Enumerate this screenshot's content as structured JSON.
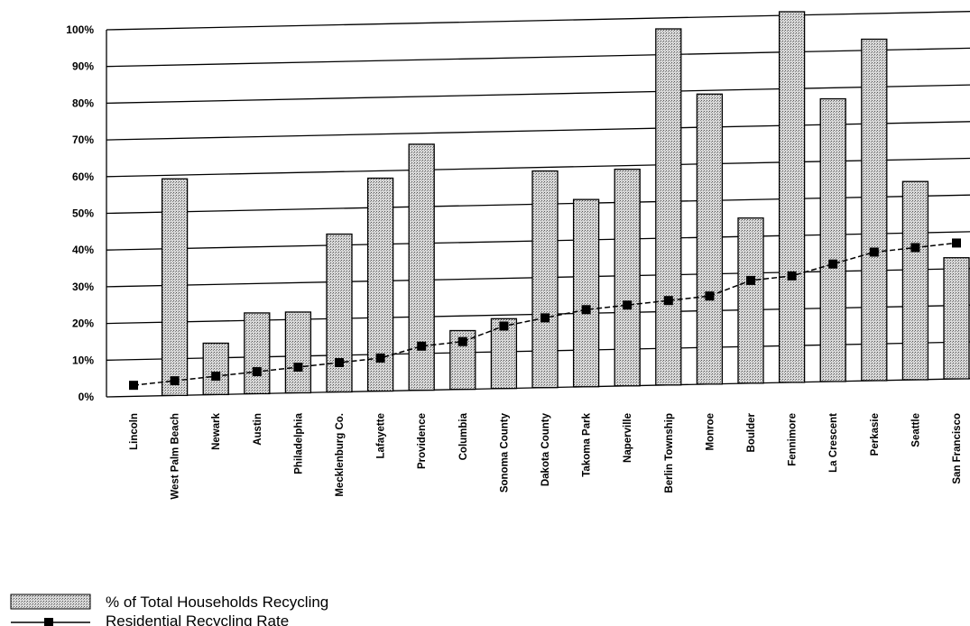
{
  "chart_data": {
    "type": "bar",
    "categories": [
      "Lincoln",
      "West Palm Beach",
      "Newark",
      "Austin",
      "Philadelphia",
      "Mecklenburg Co.",
      "Lafayette",
      "Providence",
      "Columbia",
      "Sonoma County",
      "Dakota County",
      "Takoma Park",
      "Naperville",
      "Berlin Township",
      "Monroe",
      "Boulder",
      "Fennimore",
      "La Crescent",
      "Perkasie",
      "Seattle",
      "San Francisco"
    ],
    "series": [
      {
        "name": "% of Total Households Recycling",
        "kind": "bar",
        "values": [
          0,
          59,
          14,
          22,
          22,
          43,
          58,
          67,
          16,
          19,
          59,
          51,
          59,
          97,
          79,
          45,
          102,
          77,
          93,
          54,
          33
        ]
      },
      {
        "name": "Residential Recycling Rate",
        "kind": "line",
        "values": [
          3,
          4,
          5,
          6,
          7,
          8,
          9,
          12,
          13,
          17,
          19,
          21,
          22,
          23,
          24,
          28,
          29,
          32,
          35,
          36,
          37
        ]
      }
    ],
    "yticks": [
      "0%",
      "10%",
      "20%",
      "30%",
      "40%",
      "50%",
      "60%",
      "70%",
      "80%",
      "90%",
      "100%"
    ],
    "ylim": [
      0,
      100
    ],
    "grid": true,
    "legend_position": "bottom-left",
    "colors": {
      "bar_fill": "#c4c4c4",
      "line": "#000000",
      "grid": "#000000"
    }
  }
}
